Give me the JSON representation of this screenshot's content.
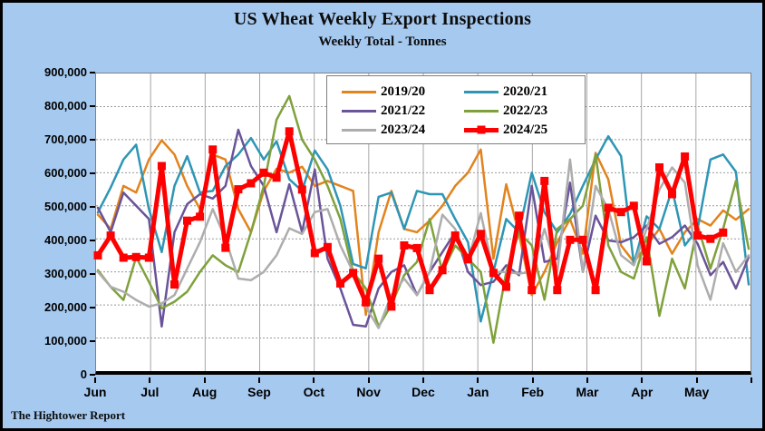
{
  "header": {
    "title": "US Wheat Weekly Export Inspections",
    "subtitle": "Weekly Total - Tonnes"
  },
  "footer": {
    "credit": "The Hightower Report"
  },
  "colors": {
    "background": "#a6c9f0",
    "plot_background": "#ffffff",
    "grid_horizontal": "#999999",
    "grid_vertical": "#a6a6a6",
    "axis": "#000000",
    "legend_border": "#7f7f7f"
  },
  "chart_data": {
    "type": "line",
    "title": "US Wheat Weekly Export Inspections",
    "subtitle": "Weekly Total - Tonnes",
    "xlabel": "",
    "ylabel": "",
    "x_unit": "week of marketing year (Jun-May)",
    "y_unit": "tonnes",
    "ylim": [
      0,
      900000
    ],
    "y_tick_interval": 100000,
    "y_tick_labels": [
      "0",
      "100,000",
      "200,000",
      "300,000",
      "400,000",
      "500,000",
      "600,000",
      "700,000",
      "800,000",
      "900,000"
    ],
    "x_tick_labels": [
      "Jun",
      "Jul",
      "Aug",
      "Sep",
      "Oct",
      "Nov",
      "Dec",
      "Jan",
      "Feb",
      "Mar",
      "Apr",
      "May"
    ],
    "weeks_per_year": 52,
    "grid": true,
    "legend_position": "top-center",
    "series": [
      {
        "name": "2019/20",
        "color": "#e2831d",
        "line_width": 2.5,
        "marker": "none",
        "values": [
          473000,
          430000,
          560000,
          540000,
          640000,
          698000,
          655000,
          560000,
          490000,
          655000,
          640000,
          490000,
          420000,
          545000,
          612000,
          600000,
          618000,
          560000,
          575000,
          560000,
          545000,
          170000,
          420000,
          545000,
          430000,
          420000,
          455000,
          500000,
          560000,
          600000,
          670000,
          340000,
          565000,
          415000,
          230000,
          300000,
          390000,
          460000,
          355000,
          660000,
          580000,
          380000,
          330000,
          380000,
          430000,
          355000,
          420000,
          460000,
          440000,
          486000,
          458000,
          490000
        ]
      },
      {
        "name": "2020/21",
        "color": "#2e96b5",
        "line_width": 2.5,
        "marker": "none",
        "values": [
          480000,
          555000,
          640000,
          685000,
          490000,
          360000,
          560000,
          650000,
          540000,
          545000,
          620000,
          655000,
          705000,
          640000,
          695000,
          580000,
          545000,
          667000,
          610000,
          500000,
          324000,
          311000,
          527000,
          540000,
          430000,
          545000,
          535000,
          535000,
          460000,
          390000,
          150000,
          300000,
          460000,
          420000,
          600000,
          480000,
          420000,
          475000,
          560000,
          640000,
          710000,
          650000,
          324000,
          468000,
          430000,
          550000,
          380000,
          430000,
          640000,
          655000,
          603000,
          262000
        ]
      },
      {
        "name": "2021/22",
        "color": "#6a5499",
        "line_width": 2.5,
        "marker": "none",
        "values": [
          494000,
          420000,
          540000,
          500000,
          460000,
          135000,
          420000,
          505000,
          535000,
          522000,
          560000,
          730000,
          620000,
          560000,
          420000,
          565000,
          420000,
          610000,
          340000,
          250000,
          140000,
          135000,
          250000,
          300000,
          320000,
          230000,
          300000,
          360000,
          420000,
          300000,
          260000,
          270000,
          320000,
          290000,
          560000,
          330000,
          340000,
          570000,
          300000,
          470000,
          395000,
          390000,
          405000,
          440000,
          385000,
          405000,
          440000,
          385000,
          290000,
          330000,
          250000,
          345000
        ]
      },
      {
        "name": "2022/23",
        "color": "#7fa13c",
        "line_width": 2.5,
        "marker": "none",
        "values": [
          305000,
          255000,
          215000,
          345000,
          270000,
          190000,
          210000,
          240000,
          300000,
          350000,
          320000,
          300000,
          420000,
          560000,
          760000,
          832000,
          700000,
          640000,
          560000,
          460000,
          300000,
          250000,
          135000,
          200000,
          290000,
          330000,
          460000,
          300000,
          380000,
          340000,
          300000,
          86000,
          300000,
          420000,
          380000,
          216000,
          430000,
          460000,
          500000,
          655000,
          380000,
          300000,
          280000,
          405000,
          167000,
          340000,
          250000,
          440000,
          310000,
          430000,
          575000,
          370000
        ]
      },
      {
        "name": "2023/24",
        "color": "#adadad",
        "line_width": 2.5,
        "marker": "none",
        "values": [
          300000,
          255000,
          240000,
          215000,
          195000,
          205000,
          230000,
          310000,
          390000,
          490000,
          400000,
          280000,
          275000,
          300000,
          350000,
          432000,
          415000,
          481000,
          490000,
          380000,
          300000,
          195000,
          130000,
          230000,
          280000,
          230000,
          300000,
          473000,
          430000,
          330000,
          478000,
          300000,
          300000,
          295000,
          300000,
          430000,
          300000,
          640000,
          300000,
          560000,
          490000,
          350000,
          320000,
          430000,
          549000,
          616000,
          570000,
          319000,
          216000,
          387000,
          300000,
          350000
        ]
      },
      {
        "name": "2024/25",
        "color": "#ff0000",
        "line_width": 5,
        "marker": "square",
        "values": [
          350000,
          410000,
          343000,
          345000,
          343000,
          620000,
          262000,
          455000,
          467000,
          670000,
          373000,
          550000,
          568000,
          600000,
          585000,
          725000,
          549000,
          357000,
          375000,
          265000,
          297000,
          208000,
          340000,
          195000,
          380000,
          372000,
          245000,
          305000,
          410000,
          338000,
          415000,
          297000,
          255000,
          470000,
          245000,
          575000,
          245000,
          397000,
          397000,
          245000,
          494000,
          481000,
          500000,
          332000,
          616000,
          535000,
          649000,
          410000,
          400000,
          419000
        ]
      }
    ]
  }
}
